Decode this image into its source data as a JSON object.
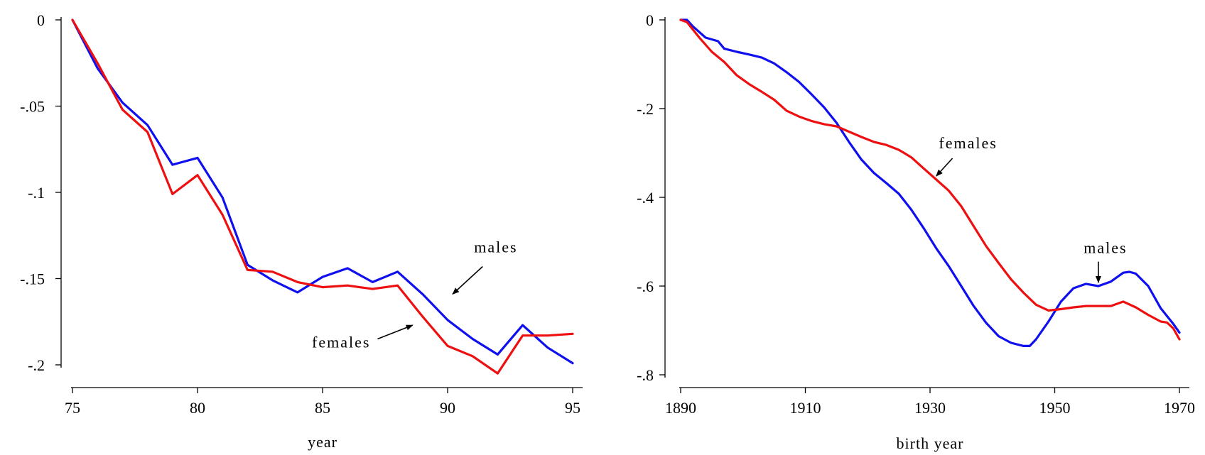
{
  "colors": {
    "males": "#1010ee",
    "females": "#ee1010",
    "axis": "#000000"
  },
  "chart_data": [
    {
      "type": "line",
      "title": "",
      "xlabel": "year",
      "ylabel": "",
      "xlim": [
        75,
        95
      ],
      "ylim": [
        -0.2,
        0
      ],
      "xticks": [
        75,
        80,
        85,
        90,
        95
      ],
      "xtick_labels": [
        "75",
        "80",
        "85",
        "90",
        "95"
      ],
      "yticks": [
        0,
        -0.05,
        -0.1,
        -0.15,
        -0.2
      ],
      "ytick_labels": [
        "0",
        "-.05",
        "-.1",
        "-.15",
        "-.2"
      ],
      "grid": false,
      "legend": "none",
      "series": [
        {
          "key": "males",
          "x": [
            75,
            76,
            77,
            78,
            79,
            80,
            81,
            82,
            83,
            84,
            85,
            86,
            87,
            88,
            89,
            90,
            91,
            92,
            93,
            94,
            95
          ],
          "y": [
            0,
            -0.028,
            -0.048,
            -0.061,
            -0.084,
            -0.08,
            -0.103,
            -0.142,
            -0.151,
            -0.158,
            -0.149,
            -0.144,
            -0.152,
            -0.146,
            -0.159,
            -0.174,
            -0.185,
            -0.194,
            -0.177,
            -0.19,
            -0.199
          ]
        },
        {
          "key": "females",
          "x": [
            75,
            76,
            77,
            78,
            79,
            80,
            81,
            82,
            83,
            84,
            85,
            86,
            87,
            88,
            89,
            90,
            91,
            92,
            93,
            94,
            95
          ],
          "y": [
            0,
            -0.025,
            -0.052,
            -0.065,
            -0.101,
            -0.09,
            -0.113,
            -0.145,
            -0.146,
            -0.152,
            -0.155,
            -0.154,
            -0.156,
            -0.154,
            -0.172,
            -0.189,
            -0.195,
            -0.205,
            -0.183,
            -0.183,
            -0.182
          ]
        }
      ],
      "annotations": [
        {
          "key": "males",
          "text": "males",
          "at": [
            90.2,
            -0.159
          ],
          "from": [
            91.4,
            -0.143
          ]
        },
        {
          "key": "females",
          "text": "females",
          "at": [
            88.6,
            -0.177
          ],
          "from": [
            87.2,
            -0.185
          ]
        }
      ]
    },
    {
      "type": "line",
      "title": "",
      "xlabel": "birth year",
      "ylabel": "",
      "xlim": [
        1890,
        1970
      ],
      "ylim": [
        -0.8,
        0
      ],
      "xticks": [
        1890,
        1910,
        1930,
        1950,
        1970
      ],
      "xtick_labels": [
        "1890",
        "1910",
        "1930",
        "1950",
        "1970"
      ],
      "yticks": [
        0,
        -0.2,
        -0.4,
        -0.6,
        -0.8
      ],
      "ytick_labels": [
        "0",
        "-.2",
        "-.4",
        "-.6",
        "-.8"
      ],
      "grid": false,
      "legend": "none",
      "series": [
        {
          "key": "males",
          "x": [
            1890,
            1891,
            1892,
            1894,
            1896,
            1897,
            1899,
            1901,
            1903,
            1905,
            1907,
            1909,
            1911,
            1913,
            1915,
            1917,
            1919,
            1921,
            1923,
            1925,
            1927,
            1929,
            1931,
            1933,
            1935,
            1937,
            1939,
            1941,
            1943,
            1945,
            1946,
            1947,
            1949,
            1951,
            1953,
            1955,
            1957,
            1959,
            1961,
            1962,
            1963,
            1965,
            1967,
            1969,
            1970
          ],
          "y": [
            0,
            0,
            -0.015,
            -0.04,
            -0.048,
            -0.065,
            -0.072,
            -0.078,
            -0.085,
            -0.098,
            -0.118,
            -0.14,
            -0.168,
            -0.197,
            -0.232,
            -0.275,
            -0.315,
            -0.345,
            -0.368,
            -0.392,
            -0.428,
            -0.47,
            -0.515,
            -0.555,
            -0.6,
            -0.645,
            -0.683,
            -0.713,
            -0.728,
            -0.735,
            -0.735,
            -0.72,
            -0.68,
            -0.635,
            -0.605,
            -0.595,
            -0.6,
            -0.59,
            -0.57,
            -0.568,
            -0.572,
            -0.6,
            -0.65,
            -0.685,
            -0.705
          ]
        },
        {
          "key": "females",
          "x": [
            1890,
            1891,
            1893,
            1895,
            1897,
            1899,
            1901,
            1903,
            1905,
            1907,
            1909,
            1911,
            1913,
            1915,
            1917,
            1919,
            1921,
            1923,
            1925,
            1927,
            1929,
            1931,
            1933,
            1935,
            1937,
            1939,
            1941,
            1943,
            1945,
            1947,
            1949,
            1951,
            1953,
            1955,
            1957,
            1959,
            1961,
            1963,
            1965,
            1967,
            1968,
            1969,
            1970
          ],
          "y": [
            0,
            -0.005,
            -0.04,
            -0.072,
            -0.095,
            -0.125,
            -0.145,
            -0.162,
            -0.18,
            -0.205,
            -0.218,
            -0.228,
            -0.235,
            -0.24,
            -0.252,
            -0.264,
            -0.275,
            -0.282,
            -0.293,
            -0.31,
            -0.335,
            -0.36,
            -0.385,
            -0.42,
            -0.465,
            -0.51,
            -0.548,
            -0.585,
            -0.615,
            -0.642,
            -0.655,
            -0.652,
            -0.648,
            -0.645,
            -0.645,
            -0.645,
            -0.635,
            -0.648,
            -0.665,
            -0.68,
            -0.682,
            -0.695,
            -0.72
          ]
        }
      ],
      "annotations": [
        {
          "key": "females",
          "text": "females",
          "at": [
            1931,
            -0.352
          ],
          "from": [
            1933.6,
            -0.312
          ]
        },
        {
          "key": "males",
          "text": "males",
          "at": [
            1957,
            -0.592
          ],
          "from": [
            1957,
            -0.545
          ]
        }
      ]
    }
  ]
}
